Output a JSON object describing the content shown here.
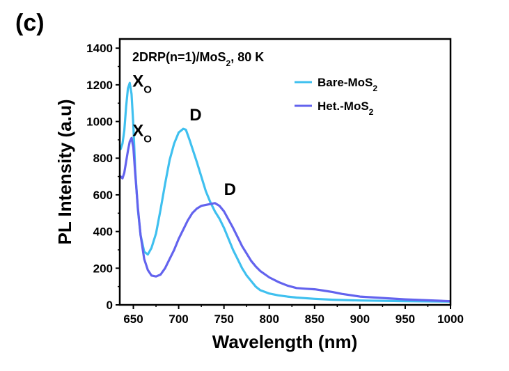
{
  "panel_label": "(c)",
  "chart_data": {
    "type": "line",
    "title": "2DRP(n=1)/MoS",
    "title_sub": "2",
    "title_suffix": ", 80 K",
    "xlabel": "Wavelength (nm)",
    "ylabel": "PL Intensity (a.u)",
    "xlim": [
      635,
      1000
    ],
    "ylim": [
      0,
      1450
    ],
    "x_ticks": [
      650,
      700,
      750,
      800,
      850,
      900,
      950,
      1000
    ],
    "y_ticks": [
      0,
      200,
      400,
      600,
      800,
      1000,
      1200,
      1400
    ],
    "grid": false,
    "legend_position": "top-right",
    "series": [
      {
        "name": "Bare-MoS",
        "name_sub": "2",
        "color": "#3FC0EF",
        "x": [
          636,
          638,
          640,
          642,
          644,
          646,
          648,
          650,
          652,
          655,
          658,
          662,
          666,
          670,
          675,
          680,
          685,
          690,
          695,
          700,
          705,
          708,
          712,
          716,
          720,
          725,
          730,
          735,
          740,
          745,
          750,
          755,
          760,
          765,
          770,
          775,
          780,
          785,
          790,
          800,
          810,
          820,
          830,
          850,
          870,
          900,
          950,
          1000
        ],
        "y": [
          850,
          880,
          950,
          1080,
          1180,
          1210,
          1150,
          980,
          740,
          520,
          380,
          290,
          275,
          310,
          390,
          520,
          660,
          790,
          880,
          940,
          960,
          955,
          900,
          840,
          780,
          700,
          620,
          560,
          510,
          470,
          420,
          360,
          300,
          250,
          200,
          160,
          130,
          100,
          80,
          62,
          52,
          45,
          40,
          33,
          28,
          24,
          20,
          18
        ]
      },
      {
        "name": "Het.-MoS",
        "name_sub": "2",
        "color": "#6363EE",
        "x": [
          636,
          638,
          640,
          642,
          644,
          646,
          648,
          650,
          652,
          655,
          658,
          662,
          666,
          670,
          675,
          680,
          685,
          690,
          695,
          700,
          705,
          710,
          715,
          720,
          725,
          730,
          735,
          740,
          745,
          750,
          755,
          760,
          765,
          770,
          775,
          780,
          785,
          790,
          800,
          810,
          820,
          830,
          840,
          850,
          860,
          870,
          880,
          900,
          950,
          1000
        ],
        "y": [
          700,
          690,
          720,
          780,
          840,
          890,
          910,
          860,
          720,
          530,
          380,
          250,
          190,
          160,
          155,
          165,
          200,
          250,
          300,
          360,
          410,
          460,
          500,
          525,
          540,
          545,
          550,
          555,
          540,
          510,
          465,
          420,
          370,
          320,
          280,
          240,
          210,
          185,
          150,
          125,
          105,
          92,
          88,
          85,
          78,
          70,
          60,
          45,
          30,
          20
        ]
      }
    ],
    "annotations": [
      {
        "text": "X",
        "sub": "O",
        "x": 649,
        "y": 1190
      },
      {
        "text": "X",
        "sub": "O",
        "x": 649,
        "y": 920
      },
      {
        "text": "D",
        "x": 712,
        "y": 1005
      },
      {
        "text": "D",
        "x": 750,
        "y": 600
      }
    ]
  }
}
